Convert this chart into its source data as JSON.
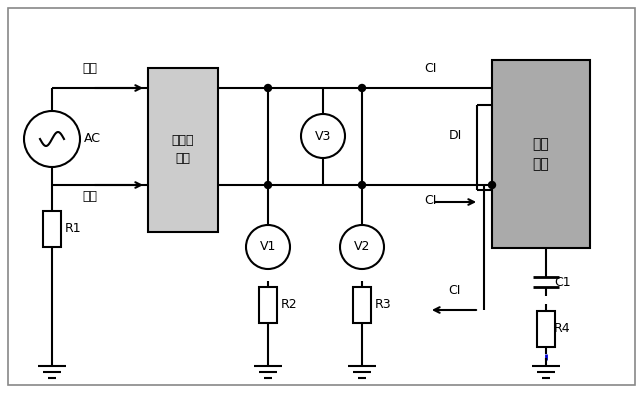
{
  "bg_color": "#ffffff",
  "line_color": "#000000",
  "gray_fill": "#aaaaaa",
  "light_gray_fill": "#cccccc",
  "blue_color": "#0000cd",
  "labels": {
    "huoxian": "火线",
    "lingxian": "零线",
    "AC": "AC",
    "filter": "低通滤\n波器",
    "device": "电子\n设备",
    "V1": "V1",
    "V2": "V2",
    "V3": "V3",
    "R1": "R1",
    "R2": "R2",
    "R3": "R3",
    "R4": "R4",
    "C1": "C1",
    "CI": "CI",
    "DI": "DI"
  },
  "figsize": [
    6.43,
    3.93
  ],
  "dpi": 100
}
